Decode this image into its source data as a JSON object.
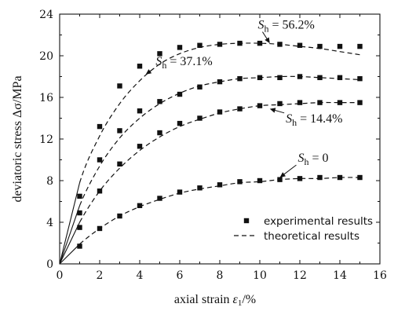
{
  "chart_data": {
    "type": "scatter",
    "title": "",
    "xlabel": {
      "prefix": "axial strain ",
      "symbol": "ε",
      "subscript": "1",
      "suffix": "/%"
    },
    "ylabel": "deviatoric stress Δσ/MPa",
    "xlim": [
      0,
      16
    ],
    "ylim": [
      0,
      24
    ],
    "x_ticks": [
      0,
      2,
      4,
      6,
      8,
      10,
      12,
      14,
      16
    ],
    "y_ticks": [
      0,
      4,
      8,
      12,
      16,
      20,
      24
    ],
    "grid": false,
    "legend_position": "bottom-right",
    "legend": [
      {
        "label": "experimental results",
        "marker": "square"
      },
      {
        "label": "theoretical results",
        "marker": "dashed-line"
      }
    ],
    "series": [
      {
        "name": "Sh=56.2%",
        "experimental": {
          "x": [
            1,
            2,
            3,
            4,
            5,
            6,
            7,
            8,
            9,
            10,
            11,
            12,
            13,
            14,
            15
          ],
          "y": [
            6.5,
            13.2,
            17.1,
            19.0,
            20.2,
            20.8,
            21.0,
            21.1,
            21.2,
            21.2,
            21.1,
            21.0,
            20.9,
            20.9,
            20.9
          ]
        },
        "theoretical": {
          "x": [
            0,
            1,
            2,
            3,
            4,
            5,
            6,
            7,
            8,
            9,
            10,
            11,
            12,
            13,
            14,
            15
          ],
          "y": [
            0,
            7.8,
            12.3,
            15.4,
            17.6,
            19.2,
            20.2,
            20.8,
            21.1,
            21.2,
            21.2,
            21.1,
            20.9,
            20.7,
            20.4,
            20.1
          ]
        }
      },
      {
        "name": "Sh=37.1%",
        "experimental": {
          "x": [
            1,
            2,
            3,
            4,
            5,
            6,
            7,
            8,
            9,
            10,
            11,
            12,
            13,
            14,
            15
          ],
          "y": [
            4.9,
            10.0,
            12.8,
            14.7,
            15.6,
            16.3,
            17.0,
            17.5,
            17.8,
            17.9,
            17.9,
            18.0,
            17.9,
            17.9,
            17.8
          ]
        },
        "theoretical": {
          "x": [
            0,
            1,
            2,
            3,
            4,
            5,
            6,
            7,
            8,
            9,
            10,
            11,
            12,
            13,
            14,
            15
          ],
          "y": [
            0,
            5.6,
            9.4,
            12.1,
            14.0,
            15.4,
            16.4,
            17.1,
            17.5,
            17.8,
            17.9,
            18.0,
            18.0,
            17.9,
            17.8,
            17.7
          ]
        }
      },
      {
        "name": "Sh=14.4%",
        "experimental": {
          "x": [
            1,
            2,
            3,
            4,
            5,
            6,
            7,
            8,
            9,
            10,
            11,
            12,
            13,
            14,
            15
          ],
          "y": [
            3.5,
            7.0,
            9.6,
            11.3,
            12.6,
            13.5,
            14.0,
            14.6,
            14.9,
            15.2,
            15.4,
            15.5,
            15.5,
            15.5,
            15.5
          ]
        },
        "theoretical": {
          "x": [
            0,
            1,
            2,
            3,
            4,
            5,
            6,
            7,
            8,
            9,
            10,
            11,
            12,
            13,
            14,
            15
          ],
          "y": [
            0,
            4.0,
            7.0,
            9.2,
            10.9,
            12.2,
            13.2,
            13.9,
            14.5,
            14.9,
            15.2,
            15.3,
            15.4,
            15.5,
            15.5,
            15.5
          ]
        }
      },
      {
        "name": "Sh=0",
        "experimental": {
          "x": [
            1,
            2,
            3,
            4,
            5,
            6,
            7,
            8,
            9,
            10,
            11,
            12,
            13,
            14,
            15
          ],
          "y": [
            1.7,
            3.4,
            4.6,
            5.6,
            6.3,
            6.9,
            7.3,
            7.6,
            7.9,
            8.0,
            8.1,
            8.2,
            8.3,
            8.3,
            8.3
          ]
        },
        "theoretical": {
          "x": [
            0,
            1,
            2,
            3,
            4,
            5,
            6,
            7,
            8,
            9,
            10,
            11,
            12,
            13,
            14,
            15
          ],
          "y": [
            0,
            1.9,
            3.4,
            4.6,
            5.5,
            6.2,
            6.8,
            7.2,
            7.5,
            7.8,
            7.9,
            8.1,
            8.2,
            8.2,
            8.3,
            8.3
          ]
        }
      }
    ],
    "annotations": [
      {
        "symbol": "S",
        "subscript": "h",
        "text": " = 56.2%",
        "label_x": 9.9,
        "label_y": 22.6,
        "target_x": 10.5,
        "target_y": 21.2
      },
      {
        "symbol": "S",
        "subscript": "h",
        "text": " = 37.1%",
        "label_x": 4.8,
        "label_y": 19.1,
        "target_x": 4.3,
        "target_y": 18.2
      },
      {
        "symbol": "S",
        "subscript": "h",
        "text": " = 14.4%",
        "label_x": 11.3,
        "label_y": 13.6,
        "target_x": 10.5,
        "target_y": 14.9
      },
      {
        "symbol": "S",
        "subscript": "h",
        "text": " = 0",
        "label_x": 11.9,
        "label_y": 9.8,
        "target_x": 11.0,
        "target_y": 8.3
      }
    ]
  }
}
